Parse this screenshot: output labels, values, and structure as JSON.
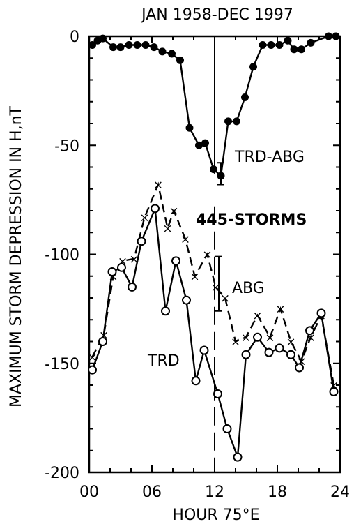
{
  "chart_data": {
    "type": "line",
    "title": "JAN 1958-DEC 1997",
    "xlabel": "HOUR 75°E",
    "ylabel": "MAXIMUM STORM DEPRESSION IN H,nT",
    "xlim": [
      0,
      24
    ],
    "ylim": [
      -200,
      0
    ],
    "x_ticks": [
      "00",
      "06",
      "12",
      "18",
      "24"
    ],
    "y_ticks": [
      "0",
      "-50",
      "-100",
      "-150",
      "-200"
    ],
    "x_tick_values": [
      0,
      6,
      12,
      18,
      24
    ],
    "y_tick_values": [
      0,
      -50,
      -100,
      -150,
      -200
    ],
    "annotations": [
      "TRD-ABG",
      "445-STORMS",
      "ABG",
      "TRD"
    ],
    "series": [
      {
        "name": "TRD-ABG",
        "marker": "filled-circle",
        "line": "solid",
        "x": [
          0.3,
          0.8,
          1.3,
          2.3,
          3.0,
          3.8,
          4.6,
          5.4,
          6.2,
          7.0,
          7.9,
          8.7,
          9.6,
          10.5,
          11.1,
          11.9,
          12.6,
          13.3,
          14.1,
          14.9,
          15.7,
          16.6,
          17.4,
          18.2,
          19.0,
          19.6,
          20.3,
          21.2,
          22.9,
          23.6
        ],
        "y": [
          -4,
          -2,
          -1,
          -5,
          -5,
          -4,
          -4,
          -4,
          -5,
          -7,
          -8,
          -11,
          -42,
          -50,
          -49,
          -61,
          -64,
          -39,
          -39,
          -28,
          -14,
          -4,
          -4,
          -4,
          -2,
          -6,
          -6,
          -3,
          0,
          0
        ]
      },
      {
        "name": "ABG",
        "marker": "x",
        "line": "dashed",
        "x": [
          0.3,
          1.4,
          2.3,
          3.2,
          4.3,
          5.3,
          6.6,
          7.5,
          8.1,
          9.2,
          10.1,
          11.3,
          12.1,
          13.0,
          14.0,
          15.0,
          16.1,
          17.3,
          18.3,
          19.3,
          20.3,
          21.2,
          22.2,
          23.4
        ],
        "y": [
          -147,
          -137,
          -110,
          -103,
          -102,
          -83,
          -68,
          -88,
          -80,
          -93,
          -110,
          -100,
          -115,
          -120,
          -140,
          -138,
          -128,
          -138,
          -125,
          -140,
          -149,
          -138,
          -128,
          -160
        ]
      },
      {
        "name": "TRD",
        "marker": "open-circle",
        "line": "solid",
        "x": [
          0.3,
          1.3,
          2.2,
          3.1,
          4.1,
          5.0,
          6.3,
          7.3,
          8.3,
          9.3,
          10.2,
          11.0,
          12.3,
          13.2,
          14.2,
          15.0,
          16.1,
          17.2,
          18.2,
          19.3,
          20.1,
          21.1,
          22.2,
          23.4
        ],
        "y": [
          -153,
          -140,
          -108,
          -106,
          -115,
          -94,
          -79,
          -126,
          -103,
          -121,
          -158,
          -144,
          -164,
          -180,
          -193,
          -146,
          -138,
          -145,
          -143,
          -146,
          -152,
          -135,
          -127,
          -163
        ]
      }
    ]
  }
}
